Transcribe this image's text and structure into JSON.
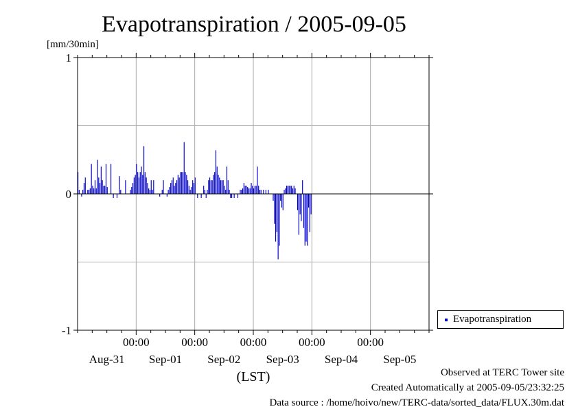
{
  "chart_data": {
    "type": "bar",
    "title": "Evapotranspiration / 2005-09-05",
    "ylabel": "[mm/30min]",
    "xlabel": "(LST)",
    "ylim": [
      -1,
      1
    ],
    "y_ticks": [
      "1",
      "0",
      "-1"
    ],
    "x_time_labels": [
      "00:00",
      "00:00",
      "00:00",
      "00:00",
      "00:00"
    ],
    "x_day_labels": [
      "Aug-31",
      "Sep-01",
      "Sep-02",
      "Sep-03",
      "Sep-04",
      "Sep-05"
    ],
    "x_range_hours": [
      0,
      144
    ],
    "grid": true,
    "legend": {
      "position": "right",
      "entries": [
        "Evapotranspiration"
      ]
    },
    "series": [
      {
        "name": "Evapotranspiration",
        "color": "#0000cc",
        "interval_hours": 0.5,
        "values": [
          0.16,
          0.03,
          0,
          -0.02,
          0.03,
          0.08,
          0.12,
          0,
          0.03,
          0.03,
          0.04,
          0.22,
          0.06,
          0.04,
          0.1,
          0.04,
          0.25,
          0.12,
          0.08,
          0.2,
          0.1,
          0.06,
          0.06,
          0.22,
          0.05,
          0,
          0,
          0.22,
          0,
          -0.03,
          0,
          0,
          -0.03,
          0,
          0.13,
          0.03,
          0,
          0,
          0,
          0.1,
          0,
          0,
          0,
          0.03,
          0.05,
          0.08,
          0.12,
          0.14,
          0.22,
          0.16,
          0.12,
          0.16,
          0.2,
          0.14,
          0.35,
          0.16,
          0.12,
          0.08,
          0.04,
          0.03,
          0.1,
          0.03,
          0.1,
          0,
          0,
          0,
          0,
          -0.02,
          0,
          0.03,
          0.1,
          0,
          0,
          -0.02,
          0.03,
          0.05,
          0.08,
          0.1,
          0.12,
          0.06,
          0.08,
          0.1,
          0.14,
          0.12,
          0.16,
          0.16,
          0.16,
          0.38,
          0.16,
          0.14,
          0.1,
          0.06,
          0.03,
          0.05,
          0.1,
          0.08,
          0.12,
          0,
          -0.03,
          0,
          0,
          -0.03,
          0,
          0.06,
          0.03,
          -0.03,
          0.03,
          0.1,
          0.12,
          0.1,
          0.1,
          0.14,
          0.16,
          0.32,
          0.2,
          0.14,
          0.12,
          0.1,
          0.1,
          0.1,
          0.06,
          0.03,
          0.2,
          0.1,
          0.03,
          -0.03,
          -0.03,
          0,
          -0.03,
          0,
          0,
          -0.03,
          0,
          0.03,
          0.03,
          0.04,
          0.08,
          0.06,
          0.06,
          0.05,
          0.04,
          0.04,
          0.08,
          0.06,
          0.04,
          0.06,
          0.06,
          0.2,
          0.06,
          0.03,
          0.03,
          0,
          0.03,
          0,
          0.03,
          0,
          0.03,
          0,
          0,
          0,
          -0.05,
          -0.22,
          -0.35,
          -0.28,
          -0.48,
          -0.38,
          -0.05,
          -0.1,
          -0.12,
          0.03,
          0.04,
          0.06,
          0.06,
          0.06,
          0.06,
          0.06,
          0.04,
          0.06,
          0.04,
          0,
          -0.12,
          -0.3,
          -0.15,
          -0.2,
          0.1,
          -0.25,
          -0.38,
          -0.35,
          -0.38,
          -0.1,
          -0.28,
          -0.15
        ]
      }
    ]
  },
  "footer": {
    "observed": "Observed at TERC Tower site",
    "created": "Created Automatically at 2005-09-05/23:32:25",
    "source": "Data source : /home/hoivo/new/TERC-data/sorted_data/FLUX.30m.dat"
  }
}
